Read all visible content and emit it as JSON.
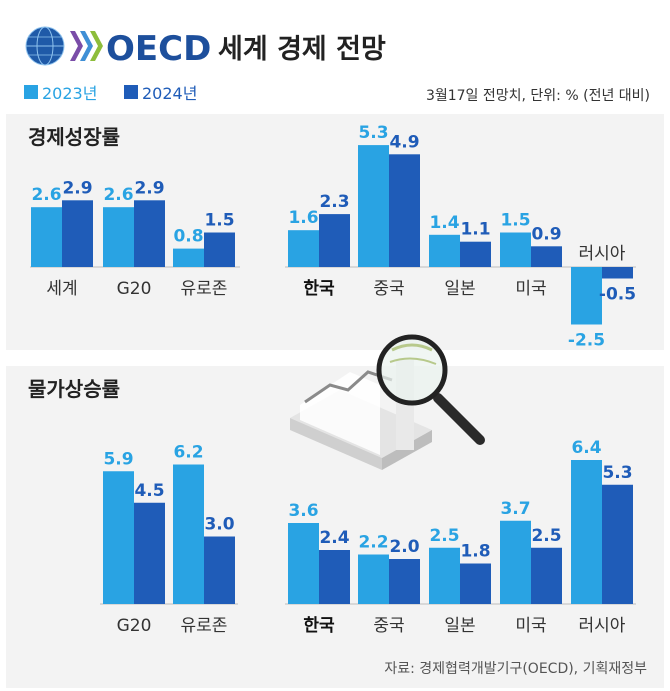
{
  "header": {
    "brand": "OECD",
    "title": "세계 경제 전망",
    "note": "3월17일 전망치, 단위: % (전년 대비)"
  },
  "legend": [
    {
      "label": "2023년",
      "color": "#29a3e3"
    },
    {
      "label": "2024년",
      "color": "#1f5cb8"
    }
  ],
  "source": "자료: 경제협력개발기구(OECD), 기획재정부",
  "colors": {
    "y2023": "#29a3e3",
    "y2024": "#1f5cb8",
    "panel": "#f3f3f3"
  },
  "chart_data": [
    {
      "type": "bar",
      "title": "경제성장률",
      "categories": [
        "세계",
        "G20",
        "유로존"
      ],
      "series": [
        {
          "name": "2023년",
          "values": [
            2.6,
            2.6,
            0.8
          ]
        },
        {
          "name": "2024년",
          "values": [
            2.9,
            2.9,
            1.5
          ]
        }
      ]
    },
    {
      "type": "bar",
      "categories": [
        "한국",
        "중국",
        "일본",
        "미국",
        "러시아"
      ],
      "series": [
        {
          "name": "2023년",
          "values": [
            1.6,
            5.3,
            1.4,
            1.5,
            -2.5
          ]
        },
        {
          "name": "2024년",
          "values": [
            2.3,
            4.9,
            1.1,
            0.9,
            -0.5
          ]
        }
      ]
    },
    {
      "type": "bar",
      "title": "물가상승률",
      "categories": [
        "G20",
        "유로존"
      ],
      "series": [
        {
          "name": "2023년",
          "values": [
            5.9,
            6.2
          ]
        },
        {
          "name": "2024년",
          "values": [
            4.5,
            3.0
          ]
        }
      ]
    },
    {
      "type": "bar",
      "categories": [
        "한국",
        "중국",
        "일본",
        "미국",
        "러시아"
      ],
      "series": [
        {
          "name": "2023년",
          "values": [
            3.6,
            2.2,
            2.5,
            3.7,
            6.4
          ]
        },
        {
          "name": "2024년",
          "values": [
            2.4,
            2.0,
            1.8,
            2.5,
            5.3
          ]
        }
      ]
    }
  ]
}
